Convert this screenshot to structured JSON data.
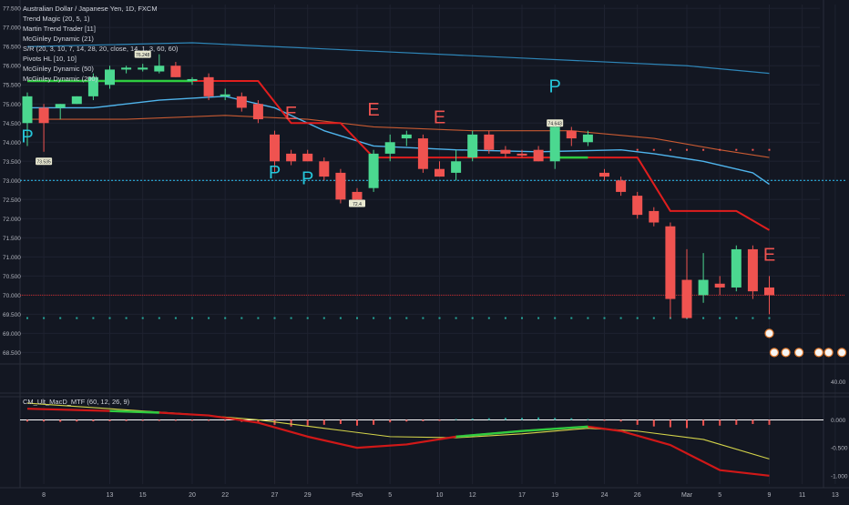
{
  "legend": {
    "title": "Australian Dollar / Japanese Yen, 1D, FXCM",
    "indicators": [
      "Trend Magic (20, 5, 1)",
      "Martin Trend Trader [11]",
      "McGinley Dynamic (21)",
      "S/R (20, 3, 10, 7, 14, 28, 20, close, 14, 1, 3, 60, 60)",
      "Pivots HL [10, 10]",
      "McGinley Dynamic (50)",
      "McGinley Dynamic (200)"
    ],
    "macd_title": "CM_Ult_MacD_MTF (60, 12, 26, 9)"
  },
  "colors": {
    "background": "#131722",
    "up": "#26a69a",
    "bull_body": "#4bd890",
    "bear_body": "#ef5350",
    "red_line": "#e01e1e",
    "mg21": "#4fb4ec",
    "mg50": "#c85a32",
    "mg200": "#2e86b8",
    "trend_magic_green": "#2ecc40",
    "label_cyan": "#26c6da",
    "label_red": "#ef5350",
    "price_dotted": "#2bb0e0",
    "price_line": "#c62828"
  },
  "chart_data": [
    {
      "type": "candlestick",
      "title": "Australian Dollar / Japanese Yen, 1D, FXCM",
      "ylim": [
        68.2,
        77.6
      ],
      "y_ticks": [
        68.5,
        69.0,
        69.5,
        70.0,
        70.5,
        71.0,
        71.5,
        72.0,
        72.5,
        73.0,
        73.5,
        74.0,
        74.5,
        75.0,
        75.5,
        76.0,
        76.5,
        77.0,
        77.5
      ],
      "y_tick_labels": [
        "68.500",
        "69.000",
        "69.500",
        "70.000",
        "70.500",
        "71.000",
        "71.500",
        "72.000",
        "72.500",
        "73.000",
        "73.500",
        "74.000",
        "74.500",
        "75.000",
        "75.500",
        "76.000",
        "76.500",
        "77.000",
        "77.500"
      ],
      "x_labels": [
        {
          "i": 1,
          "text": "8"
        },
        {
          "i": 5,
          "text": "13"
        },
        {
          "i": 7,
          "text": "15"
        },
        {
          "i": 10,
          "text": "20"
        },
        {
          "i": 12,
          "text": "22"
        },
        {
          "i": 15,
          "text": "27"
        },
        {
          "i": 17,
          "text": "29"
        },
        {
          "i": 20,
          "text": "Feb"
        },
        {
          "i": 22,
          "text": "5"
        },
        {
          "i": 25,
          "text": "10"
        },
        {
          "i": 27,
          "text": "12"
        },
        {
          "i": 30,
          "text": "17"
        },
        {
          "i": 32,
          "text": "19"
        },
        {
          "i": 35,
          "text": "24"
        },
        {
          "i": 37,
          "text": "26"
        },
        {
          "i": 40,
          "text": "Mar"
        },
        {
          "i": 42,
          "text": "5"
        },
        {
          "i": 45,
          "text": "9"
        },
        {
          "i": 47,
          "text": "11"
        },
        {
          "i": 49,
          "text": "13"
        }
      ],
      "candles": [
        {
          "o": 74.5,
          "h": 75.3,
          "l": 73.9,
          "c": 75.2
        },
        {
          "o": 74.9,
          "h": 75.0,
          "l": 73.75,
          "c": 74.5
        },
        {
          "o": 74.9,
          "h": 75.0,
          "l": 74.6,
          "c": 75.0
        },
        {
          "o": 75.0,
          "h": 75.2,
          "l": 75.0,
          "c": 75.2
        },
        {
          "o": 75.2,
          "h": 75.8,
          "l": 75.1,
          "c": 75.7
        },
        {
          "o": 75.5,
          "h": 76.0,
          "l": 75.4,
          "c": 75.9
        },
        {
          "o": 75.9,
          "h": 76.0,
          "l": 75.8,
          "c": 75.95
        },
        {
          "o": 75.9,
          "h": 76.05,
          "l": 75.85,
          "c": 75.95
        },
        {
          "o": 75.85,
          "h": 76.3,
          "l": 75.8,
          "c": 76.0
        },
        {
          "o": 76.0,
          "h": 76.1,
          "l": 75.7,
          "c": 75.7
        },
        {
          "o": 75.6,
          "h": 75.7,
          "l": 75.5,
          "c": 75.65
        },
        {
          "o": 75.7,
          "h": 75.8,
          "l": 75.1,
          "c": 75.2
        },
        {
          "o": 75.2,
          "h": 75.4,
          "l": 75.1,
          "c": 75.25
        },
        {
          "o": 75.2,
          "h": 75.3,
          "l": 74.8,
          "c": 74.9
        },
        {
          "o": 75.0,
          "h": 75.1,
          "l": 74.5,
          "c": 74.6
        },
        {
          "o": 74.2,
          "h": 74.3,
          "l": 73.2,
          "c": 73.5
        },
        {
          "o": 73.7,
          "h": 73.8,
          "l": 73.4,
          "c": 73.5
        },
        {
          "o": 73.7,
          "h": 73.8,
          "l": 73.5,
          "c": 73.5
        },
        {
          "o": 73.5,
          "h": 73.6,
          "l": 73.0,
          "c": 73.1
        },
        {
          "o": 73.2,
          "h": 73.3,
          "l": 72.4,
          "c": 72.5
        },
        {
          "o": 72.7,
          "h": 72.8,
          "l": 72.4,
          "c": 72.5
        },
        {
          "o": 72.8,
          "h": 73.8,
          "l": 72.7,
          "c": 73.7
        },
        {
          "o": 73.7,
          "h": 74.2,
          "l": 73.5,
          "c": 74.0
        },
        {
          "o": 74.1,
          "h": 74.3,
          "l": 73.9,
          "c": 74.2
        },
        {
          "o": 74.1,
          "h": 74.2,
          "l": 73.2,
          "c": 73.3
        },
        {
          "o": 73.3,
          "h": 73.5,
          "l": 73.1,
          "c": 73.1
        },
        {
          "o": 73.2,
          "h": 73.8,
          "l": 73.0,
          "c": 73.5
        },
        {
          "o": 73.6,
          "h": 74.3,
          "l": 73.5,
          "c": 74.2
        },
        {
          "o": 74.2,
          "h": 74.3,
          "l": 73.7,
          "c": 73.8
        },
        {
          "o": 73.8,
          "h": 73.9,
          "l": 73.6,
          "c": 73.7
        },
        {
          "o": 73.7,
          "h": 73.8,
          "l": 73.6,
          "c": 73.65
        },
        {
          "o": 73.8,
          "h": 73.9,
          "l": 73.5,
          "c": 73.5
        },
        {
          "o": 73.5,
          "h": 74.5,
          "l": 73.3,
          "c": 74.4
        },
        {
          "o": 74.3,
          "h": 74.4,
          "l": 73.9,
          "c": 74.1
        },
        {
          "o": 74.0,
          "h": 74.3,
          "l": 73.9,
          "c": 74.2
        },
        {
          "o": 73.2,
          "h": 73.3,
          "l": 73.0,
          "c": 73.1
        },
        {
          "o": 73.0,
          "h": 73.1,
          "l": 72.6,
          "c": 72.7
        },
        {
          "o": 72.6,
          "h": 72.7,
          "l": 72.0,
          "c": 72.1
        },
        {
          "o": 72.2,
          "h": 72.3,
          "l": 71.8,
          "c": 71.9
        },
        {
          "o": 71.8,
          "h": 71.9,
          "l": 69.4,
          "c": 69.9
        },
        {
          "o": 70.4,
          "h": 71.2,
          "l": 69.4,
          "c": 69.4
        },
        {
          "o": 70.0,
          "h": 71.1,
          "l": 69.8,
          "c": 70.4
        },
        {
          "o": 70.3,
          "h": 70.5,
          "l": 70.0,
          "c": 70.2
        },
        {
          "o": 70.2,
          "h": 71.3,
          "l": 70.1,
          "c": 71.2
        },
        {
          "o": 71.2,
          "h": 71.3,
          "l": 69.9,
          "c": 70.1
        },
        {
          "o": 70.2,
          "h": 70.5,
          "l": 69.5,
          "c": 70.0
        }
      ],
      "red_trend_line": [
        [
          0,
          75.6
        ],
        [
          14,
          75.6
        ],
        [
          16,
          74.5
        ],
        [
          19,
          74.5
        ],
        [
          21,
          73.6
        ],
        [
          37,
          73.6
        ],
        [
          39,
          72.2
        ],
        [
          43,
          72.2
        ],
        [
          45,
          71.7
        ]
      ],
      "trend_magic_green": [
        [
          0,
          75.6
        ],
        [
          10,
          75.6
        ],
        [
          32,
          73.6
        ],
        [
          34,
          73.6
        ]
      ],
      "mg21": [
        [
          0,
          74.9
        ],
        [
          4,
          74.9
        ],
        [
          8,
          75.1
        ],
        [
          12,
          75.2
        ],
        [
          15,
          74.9
        ],
        [
          18,
          74.3
        ],
        [
          21,
          73.9
        ],
        [
          26,
          73.8
        ],
        [
          31,
          73.75
        ],
        [
          36,
          73.8
        ],
        [
          38,
          73.7
        ],
        [
          41,
          73.5
        ],
        [
          44,
          73.2
        ],
        [
          45,
          72.9
        ]
      ],
      "mg50": [
        [
          0,
          74.6
        ],
        [
          6,
          74.6
        ],
        [
          12,
          74.7
        ],
        [
          17,
          74.6
        ],
        [
          21,
          74.4
        ],
        [
          27,
          74.3
        ],
        [
          33,
          74.3
        ],
        [
          38,
          74.1
        ],
        [
          42,
          73.8
        ],
        [
          45,
          73.6
        ]
      ],
      "mg200": [
        [
          0,
          76.5
        ],
        [
          10,
          76.6
        ],
        [
          20,
          76.4
        ],
        [
          30,
          76.2
        ],
        [
          40,
          76.0
        ],
        [
          45,
          75.8
        ]
      ],
      "dotted_resistance": 73.0,
      "dotted_support": 69.4,
      "current_price": 70.0,
      "price_labels": [
        {
          "i": 1,
          "y": 73.5,
          "text": "73.535"
        },
        {
          "i": 7,
          "y": 76.3,
          "text": "76.248"
        },
        {
          "i": 20,
          "y": 72.4,
          "text": "72.4"
        },
        {
          "i": 32,
          "y": 74.5,
          "text": "74.643"
        }
      ],
      "signal_labels": [
        {
          "i": 0,
          "y": 74.0,
          "text": "P",
          "kind": "cyan"
        },
        {
          "i": 15,
          "y": 73.05,
          "text": "P",
          "kind": "cyan"
        },
        {
          "i": 17,
          "y": 72.9,
          "text": "P",
          "kind": "cyan"
        },
        {
          "i": 16,
          "y": 74.6,
          "text": "E",
          "kind": "red"
        },
        {
          "i": 21,
          "y": 74.7,
          "text": "E",
          "kind": "red"
        },
        {
          "i": 25,
          "y": 74.5,
          "text": "E",
          "kind": "red"
        },
        {
          "i": 32,
          "y": 75.3,
          "text": "P",
          "kind": "cyan"
        },
        {
          "i": 45,
          "y": 70.9,
          "text": "E",
          "kind": "red"
        }
      ]
    },
    {
      "type": "line",
      "title": "CM_Ult_MacD_MTF (60, 12, 26, 9)",
      "ylim": [
        -1.15,
        0.35
      ],
      "y_ticks": [
        0.0,
        -0.5,
        -1.0
      ],
      "y_tick_labels": [
        "0.000",
        "-0.500",
        "-1.000"
      ],
      "macd": [
        [
          0,
          0.2
        ],
        [
          5,
          0.16
        ],
        [
          8,
          0.13
        ],
        [
          11,
          0.08
        ],
        [
          14,
          -0.05
        ],
        [
          17,
          -0.3
        ],
        [
          20,
          -0.5
        ],
        [
          23,
          -0.44
        ],
        [
          26,
          -0.3
        ],
        [
          30,
          -0.2
        ],
        [
          34,
          -0.12
        ],
        [
          36,
          -0.2
        ],
        [
          39,
          -0.45
        ],
        [
          42,
          -0.9
        ],
        [
          45,
          -1.0
        ]
      ],
      "signal": [
        [
          0,
          0.3
        ],
        [
          6,
          0.18
        ],
        [
          10,
          0.1
        ],
        [
          14,
          0.0
        ],
        [
          18,
          -0.15
        ],
        [
          22,
          -0.3
        ],
        [
          26,
          -0.32
        ],
        [
          30,
          -0.25
        ],
        [
          34,
          -0.15
        ],
        [
          37,
          -0.2
        ],
        [
          41,
          -0.35
        ],
        [
          45,
          -0.7
        ]
      ],
      "macd_green_segments": [
        [
          5,
          8
        ],
        [
          26,
          34
        ]
      ]
    }
  ],
  "extra_axis_label": "40.00",
  "macd_histogram_bars": [
    0.1,
    0.1,
    0.12,
    0.1,
    0.09,
    0.08,
    0.07,
    0.06,
    0.06,
    0.05,
    0.05,
    0.05,
    0.05,
    0.12,
    0.2,
    0.3,
    0.4,
    0.35,
    0.3,
    0.25,
    0.35,
    0.3,
    0.15,
    0.1,
    0.08,
    0.05,
    -0.05,
    -0.08,
    -0.1,
    -0.12,
    -0.12,
    -0.15,
    -0.12,
    -0.1,
    -0.05,
    0.05,
    0.1,
    0.3,
    0.4,
    0.45,
    0.5,
    0.35,
    0.35,
    0.3,
    0.25,
    0.3
  ]
}
